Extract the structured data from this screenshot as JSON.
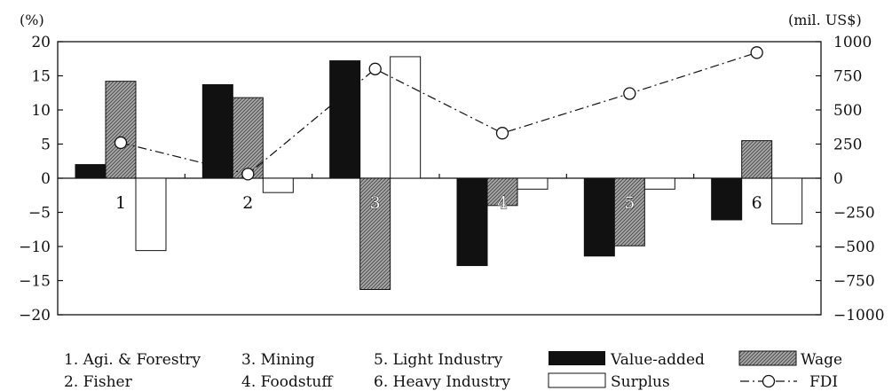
{
  "chart_data": {
    "type": "bar",
    "left_unit": "(%)",
    "right_unit": "(mil. US$)",
    "categories": [
      "1",
      "2",
      "3",
      "4",
      "5",
      "6"
    ],
    "left_ticks": [
      "20",
      "15",
      "10",
      "5",
      "0",
      "−5",
      "−10",
      "−15",
      "−20"
    ],
    "right_ticks": [
      "1000",
      "750",
      "500",
      "250",
      "0",
      "−250",
      "−500",
      "−750",
      "−1000"
    ],
    "left_ylim": [
      -20,
      20
    ],
    "right_ylim": [
      -1000,
      1000
    ],
    "series": [
      {
        "name": "Value-added",
        "axis": "left",
        "kind": "bar",
        "color": "#111111",
        "values": [
          2.0,
          13.7,
          17.2,
          -12.8,
          -11.4,
          -6.1
        ]
      },
      {
        "name": "Wage",
        "axis": "left",
        "kind": "bar",
        "color": "#8a8a8a",
        "values": [
          14.2,
          11.8,
          -16.3,
          -4.0,
          -9.9,
          5.5
        ]
      },
      {
        "name": "Surplus",
        "axis": "left",
        "kind": "bar",
        "color": "#ffffff",
        "values": [
          -10.6,
          -2.1,
          17.8,
          -1.6,
          -1.6,
          -6.7
        ]
      },
      {
        "name": "FDI",
        "axis": "right",
        "kind": "line",
        "color": "#111111",
        "values": [
          260,
          30,
          800,
          330,
          620,
          920
        ]
      }
    ],
    "category_legend": [
      "1. Agi. & Forestry",
      "2. Fisher",
      "3. Mining",
      "4. Foodstuff",
      "5. Light Industry",
      "6. Heavy Industry"
    ],
    "grid": false
  }
}
